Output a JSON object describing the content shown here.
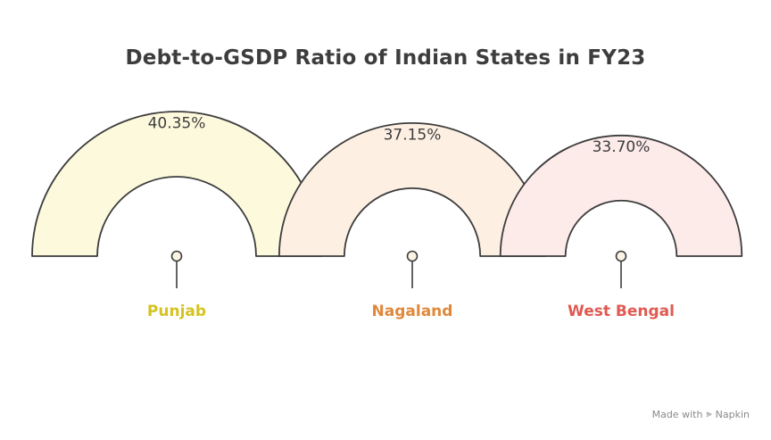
{
  "chart_data": {
    "type": "gauge",
    "title": "Debt-to-GSDP Ratio of Indian States in FY23",
    "unit": "%",
    "categories": [
      "Punjab",
      "Nagaland",
      "West Bengal"
    ],
    "values": [
      40.35,
      37.15,
      33.7
    ],
    "value_labels": [
      "40.35%",
      "37.15%",
      "33.70%"
    ],
    "colors": {
      "fills": [
        "#fdf9dd",
        "#fdf0e3",
        "#fdebea"
      ],
      "labels": [
        "#d4c320",
        "#e0883a",
        "#e05a52"
      ],
      "outline": "#3d3d3d"
    }
  },
  "footer": {
    "made_with": "Made with",
    "brand": "Napkin",
    "brand_icon": "napkin-logo-icon"
  }
}
